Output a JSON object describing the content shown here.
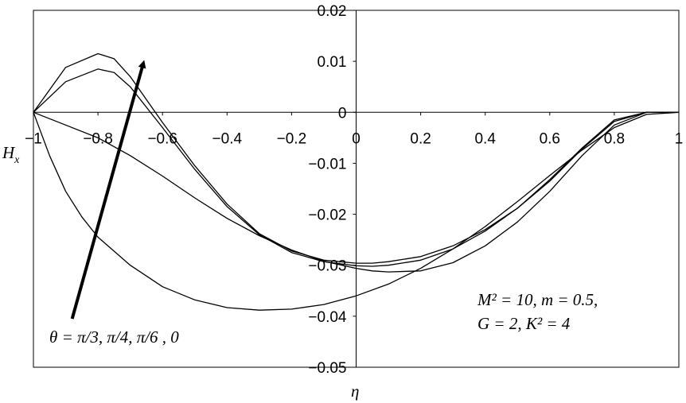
{
  "chart_data": {
    "type": "line",
    "xlabel": "η",
    "ylabel": "H",
    "ylabel_sub": "x",
    "xlim": [
      -1,
      1
    ],
    "ylim": [
      -0.05,
      0.02
    ],
    "x_ticks": [
      -1,
      -0.8,
      -0.6,
      -0.4,
      -0.2,
      0,
      0.2,
      0.4,
      0.6,
      0.8,
      1
    ],
    "x_tick_labels": [
      "−1",
      "−0.8",
      "−0.6",
      "−0.4",
      "−0.2",
      "0",
      "0.2",
      "0.4",
      "0.6",
      "0.8",
      "1"
    ],
    "y_ticks": [
      0.02,
      0.01,
      0,
      -0.01,
      -0.02,
      -0.03,
      -0.04,
      -0.05
    ],
    "y_tick_labels": [
      "0.02",
      "0.01",
      "0",
      "−0.01",
      "−0.02",
      "−0.03",
      "−0.04",
      "−0.05"
    ],
    "grid": false,
    "colors": {
      "line": "#000000",
      "axis": "#000000",
      "background": "#ffffff"
    },
    "annotations": {
      "arrow_label": "θ = π/3,  π/4,  π/6 , 0",
      "params_line1": "M² = 10, m = 0.5,",
      "params_line2": "G = 2,   K² = 4"
    },
    "arrow": {
      "from": [
        -0.88,
        -0.0405
      ],
      "to": [
        -0.66,
        0.0095
      ]
    },
    "series": [
      {
        "x": [
          -1,
          -0.9,
          -0.8,
          -0.75,
          -0.7,
          -0.6,
          -0.5,
          -0.4,
          -0.3,
          -0.2,
          -0.1,
          0,
          0.05,
          0.1,
          0.2,
          0.3,
          0.4,
          0.5,
          0.6,
          0.7,
          0.8,
          0.9,
          1
        ],
        "values": [
          0,
          0.0088,
          0.0115,
          0.0105,
          0.007,
          -0.002,
          -0.0105,
          -0.018,
          -0.0238,
          -0.0272,
          -0.029,
          -0.0296,
          -0.0296,
          -0.0293,
          -0.0283,
          -0.0262,
          -0.023,
          -0.0188,
          -0.0135,
          -0.0072,
          -0.0018,
          0,
          0
        ]
      },
      {
        "x": [
          -1,
          -0.9,
          -0.8,
          -0.75,
          -0.7,
          -0.6,
          -0.5,
          -0.4,
          -0.3,
          -0.2,
          -0.1,
          0,
          0.05,
          0.1,
          0.2,
          0.3,
          0.4,
          0.5,
          0.6,
          0.7,
          0.8,
          0.9,
          1
        ],
        "values": [
          0,
          0.006,
          0.0085,
          0.0078,
          0.005,
          -0.003,
          -0.0112,
          -0.0185,
          -0.024,
          -0.0275,
          -0.0293,
          -0.0301,
          -0.0302,
          -0.03,
          -0.029,
          -0.0268,
          -0.0233,
          -0.0188,
          -0.0132,
          -0.007,
          -0.0015,
          0,
          0
        ]
      },
      {
        "x": [
          -1,
          -0.9,
          -0.8,
          -0.7,
          -0.6,
          -0.5,
          -0.4,
          -0.3,
          -0.2,
          -0.1,
          0,
          0.05,
          0.1,
          0.2,
          0.3,
          0.4,
          0.5,
          0.6,
          0.7,
          0.8,
          0.9,
          1
        ],
        "values": [
          0,
          -0.0025,
          -0.005,
          -0.0085,
          -0.0125,
          -0.0168,
          -0.0208,
          -0.0242,
          -0.027,
          -0.0292,
          -0.0306,
          -0.0311,
          -0.0313,
          -0.0311,
          -0.0295,
          -0.0262,
          -0.0215,
          -0.0155,
          -0.0085,
          -0.0025,
          0,
          0
        ]
      },
      {
        "x": [
          -1,
          -0.95,
          -0.9,
          -0.85,
          -0.8,
          -0.7,
          -0.6,
          -0.5,
          -0.4,
          -0.3,
          -0.2,
          -0.1,
          0,
          0.1,
          0.2,
          0.3,
          0.4,
          0.5,
          0.6,
          0.7,
          0.8,
          0.9,
          1
        ],
        "values": [
          0,
          -0.0085,
          -0.0155,
          -0.0205,
          -0.0245,
          -0.03,
          -0.0342,
          -0.0368,
          -0.0383,
          -0.0388,
          -0.0386,
          -0.0377,
          -0.036,
          -0.0337,
          -0.0306,
          -0.0268,
          -0.0224,
          -0.0175,
          -0.0124,
          -0.0074,
          -0.003,
          -0.0004,
          0
        ]
      }
    ]
  }
}
